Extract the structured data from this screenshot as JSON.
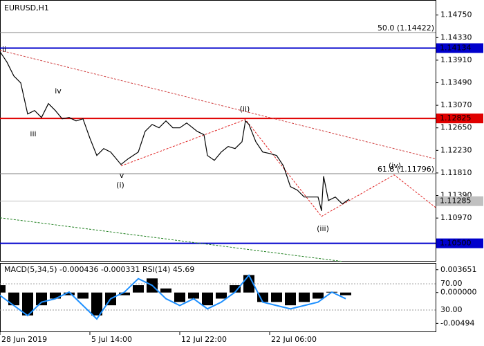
{
  "chart_data": [
    {
      "type": "line",
      "title": "EURUSD,H1",
      "x": [
        0,
        2,
        4,
        6,
        8,
        10,
        12,
        14,
        16,
        18,
        20,
        22,
        24,
        26,
        28,
        30,
        32,
        35,
        37,
        40,
        42,
        44,
        46,
        48,
        50,
        52,
        54,
        57,
        59,
        60,
        62,
        64,
        66,
        68,
        70,
        71,
        72,
        74,
        76,
        78,
        80,
        82,
        84,
        86,
        88,
        90,
        92,
        93,
        93.6,
        95,
        97,
        99,
        101
      ],
      "series": [
        {
          "name": "EURUSD",
          "color": "#000000",
          "values": [
            1.14067,
            1.13874,
            1.13616,
            1.13487,
            1.12908,
            1.12972,
            1.12843,
            1.13101,
            1.12972,
            1.12818,
            1.12843,
            1.12779,
            1.12818,
            1.12457,
            1.12135,
            1.12264,
            1.12199,
            1.11967,
            1.1207,
            1.12199,
            1.12586,
            1.12714,
            1.1265,
            1.12779,
            1.1265,
            1.1265,
            1.1274,
            1.12586,
            1.12521,
            1.12135,
            1.12045,
            1.12199,
            1.12302,
            1.12264,
            1.12392,
            1.12779,
            1.12714,
            1.12392,
            1.12199,
            1.12173,
            1.12135,
            1.11941,
            1.11555,
            1.11491,
            1.11362,
            1.11362,
            1.11362,
            1.11104,
            1.11748,
            1.11297,
            1.11362,
            1.11233,
            1.11323
          ]
        }
      ],
      "xlim": [
        0,
        126
      ],
      "xticks": [
        {
          "value": 0,
          "label": "28 Jun 2019"
        },
        {
          "value": 26,
          "label": "5 Jul 14:00"
        },
        {
          "value": 52,
          "label": "12 Jul 22:00"
        },
        {
          "value": 78,
          "label": "22 Jul 06:00"
        }
      ],
      "ylim": [
        1.1016,
        1.1503
      ],
      "yticks": [
        {
          "value": 1.1475,
          "label": "1.14750"
        },
        {
          "value": 1.1433,
          "label": "1.14330"
        },
        {
          "value": 1.1391,
          "label": "1.13910"
        },
        {
          "value": 1.1349,
          "label": "1.13490"
        },
        {
          "value": 1.1307,
          "label": "1.13070"
        },
        {
          "value": 1.1265,
          "label": "1.12650"
        },
        {
          "value": 1.1223,
          "label": "1.12230"
        },
        {
          "value": 1.1181,
          "label": "1.11810"
        },
        {
          "value": 1.1139,
          "label": "1.11390"
        },
        {
          "value": 1.1097,
          "label": "1.10970"
        }
      ],
      "levels": [
        {
          "value": 1.14134,
          "label": "1.14134",
          "color": "#0000cc"
        },
        {
          "value": 1.12825,
          "label": "1.12825",
          "color": "#e00000"
        },
        {
          "value": 1.105,
          "label": "1.10500",
          "color": "#0000cc"
        },
        {
          "value": 1.11285,
          "label": "1.11285",
          "color": "#c0c0c0"
        }
      ],
      "fib_levels": [
        {
          "value": 1.14422,
          "label": "50.0 (1.14422)"
        },
        {
          "value": 1.11796,
          "label": "61.8 (1.11796)"
        }
      ],
      "trendlines": [
        {
          "color": "#d04040",
          "x": [
            0,
            126
          ],
          "values": [
            1.14093,
            1.1207
          ]
        },
        {
          "color": "#208020",
          "x": [
            0,
            99
          ],
          "values": [
            1.10975,
            1.10163
          ]
        },
        {
          "color": "#e02020",
          "x": [
            35,
            71,
            93,
            114,
            126
          ],
          "values": [
            1.11941,
            1.12805,
            1.11001,
            1.11774,
            1.11168
          ]
        }
      ],
      "annotations": [
        {
          "text": "ii",
          "color": "#808080"
        },
        {
          "text": "iv",
          "color": "#808080"
        },
        {
          "text": "iii",
          "color": "#808080"
        },
        {
          "text": "v",
          "color": "#808080"
        },
        {
          "text": "(i)",
          "color": "#e02020"
        },
        {
          "text": "(ii)",
          "color": "#e02020"
        },
        {
          "text": "(iii)",
          "color": "#e02020"
        },
        {
          "text": "(iv)",
          "color": "#e02020"
        }
      ]
    },
    {
      "type": "bar",
      "title": "MACD(5,34,5) -0.000436 -0.000331 RSI(14) 45.69",
      "x": [
        0,
        4,
        8,
        12,
        16,
        20,
        24,
        28,
        32,
        36,
        40,
        44,
        48,
        52,
        56,
        60,
        64,
        68,
        72,
        76,
        80,
        84,
        88,
        92,
        96,
        100
      ],
      "series": [
        {
          "name": "MACD",
          "color": "#000000",
          "values": [
            0.00118,
            -0.00204,
            -0.00366,
            -0.00204,
            -0.00097,
            -0.00043,
            -0.00097,
            -0.00366,
            -0.00204,
            -0.00043,
            0.00118,
            0.00226,
            0.00065,
            -0.00151,
            -0.00097,
            -0.00204,
            -0.00097,
            0.00118,
            0.0028,
            -0.00151,
            -0.00151,
            -0.00204,
            -0.00151,
            -0.00097,
            0.00011,
            -0.00043
          ]
        },
        {
          "name": "RSI",
          "color": "#1e90ff",
          "axis": "y2",
          "values": [
            52.3,
            36.9,
            21.5,
            42.1,
            47.2,
            57.4,
            36.9,
            16.4,
            47.2,
            57.4,
            77.9,
            67.7,
            47.2,
            36.9,
            47.2,
            31.8,
            42.1,
            57.4,
            83.1,
            42.1,
            36.9,
            31.8,
            36.9,
            42.1,
            57.4,
            47.2
          ]
        }
      ],
      "xlim": [
        0,
        126
      ],
      "ylim": [
        -0.00634,
        0.00462
      ],
      "yticks": [
        0.003651,
        {
          "value": 0,
          "label": "0.000000"
        },
        -0.00494
      ],
      "y2lim": [
        -3.8,
        100.8
      ],
      "y2ticks": [
        {
          "value": 70,
          "label": "70.00"
        },
        {
          "value": 30,
          "label": "30.00"
        }
      ]
    }
  ]
}
